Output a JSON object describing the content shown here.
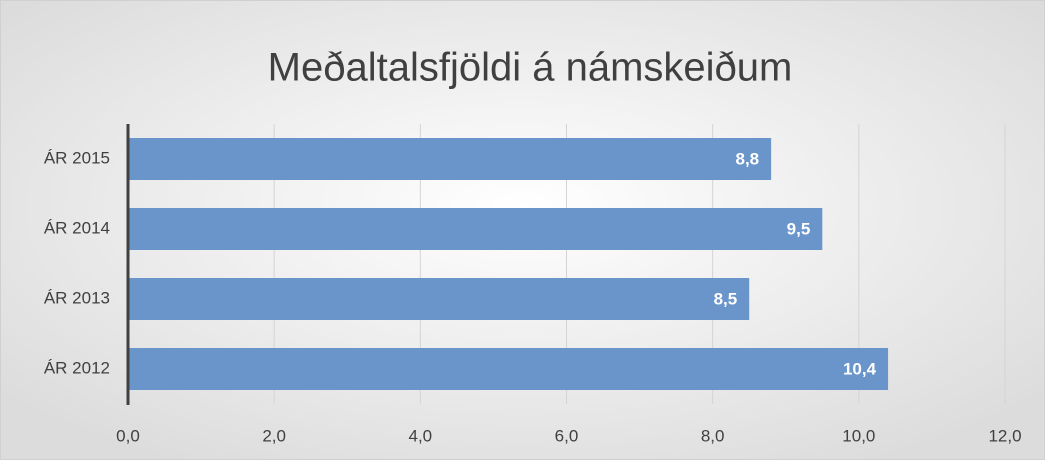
{
  "chart_data": {
    "type": "barh",
    "title": "Meðaltalsfjöldi á námskeiðum",
    "categories": [
      "ÁR 2015",
      "ÁR 2014",
      "ÁR 2013",
      "ÁR 2012"
    ],
    "values": [
      8.8,
      9.5,
      8.5,
      10.4
    ],
    "value_labels": [
      "8,8",
      "9,5",
      "8,5",
      "10,4"
    ],
    "color": "#6a95cb",
    "xlim": [
      0,
      12
    ],
    "xticks": [
      {
        "value": 0,
        "label": "0,0"
      },
      {
        "value": 2,
        "label": "2,0"
      },
      {
        "value": 4,
        "label": "4,0"
      },
      {
        "value": 6,
        "label": "6,0"
      },
      {
        "value": 8,
        "label": "8,0"
      },
      {
        "value": 10,
        "label": "10,0"
      },
      {
        "value": 12,
        "label": "12,0"
      }
    ],
    "grid": true
  }
}
